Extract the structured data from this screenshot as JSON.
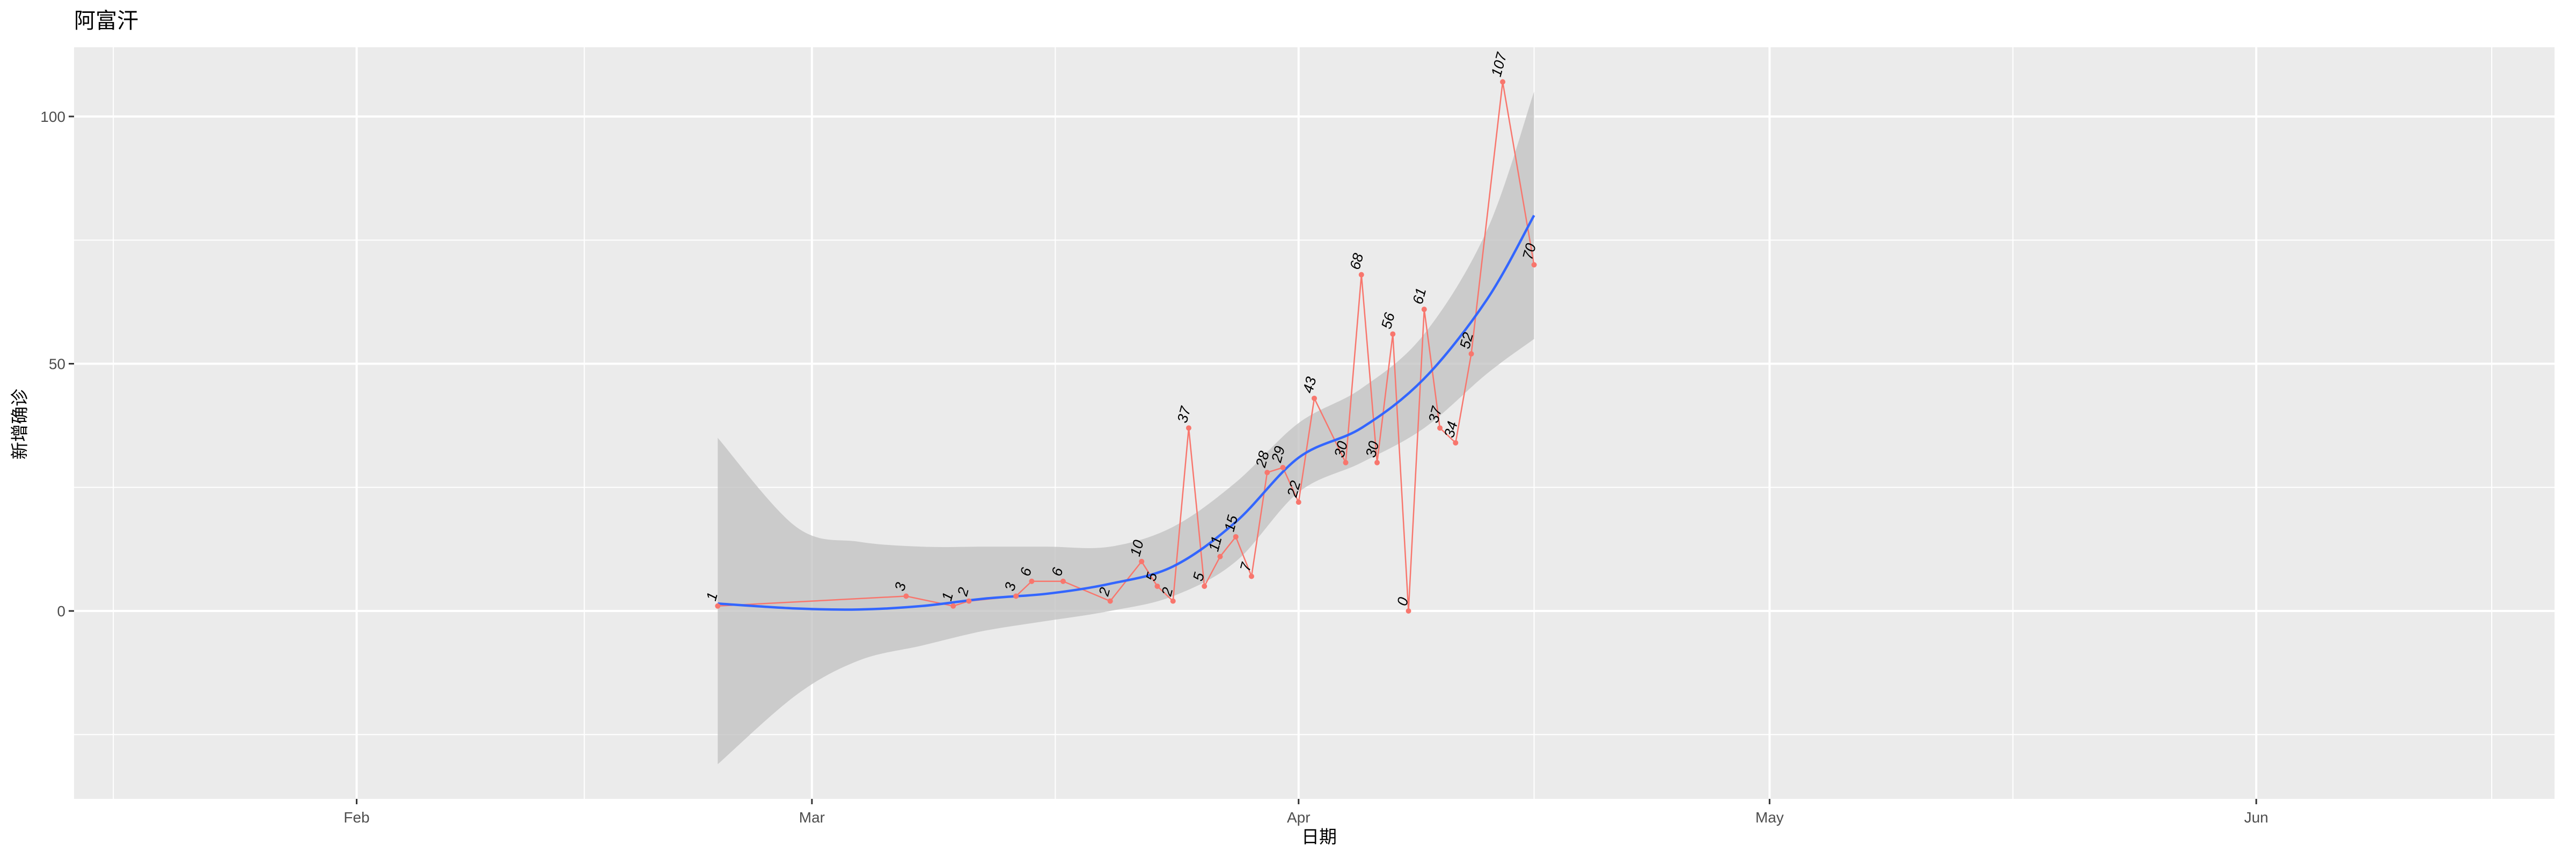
{
  "chart_data": {
    "type": "line",
    "title": "阿富汗",
    "xlabel": "日期",
    "ylabel": "新增确诊",
    "x_tick_labels": [
      "Feb",
      "Mar",
      "Apr",
      "May",
      "Jun"
    ],
    "y_tick_labels": [
      "0",
      "50",
      "100"
    ],
    "xlim": [
      "2020-01-14",
      "2020-06-20"
    ],
    "ylim": [
      -38,
      114
    ],
    "grid": true,
    "legend": "none",
    "colors": {
      "panel": "#ebebeb",
      "grid": "#ffffff",
      "series": "#f8766d",
      "smooth": "#3366ff",
      "band": "#c0c0c0"
    },
    "series": [
      {
        "points": [
          {
            "x": "2020-02-24",
            "y": 1
          },
          {
            "x": "2020-03-07",
            "y": 3
          },
          {
            "x": "2020-03-10",
            "y": 1
          },
          {
            "x": "2020-03-11",
            "y": 2
          },
          {
            "x": "2020-03-14",
            "y": 3
          },
          {
            "x": "2020-03-15",
            "y": 6
          },
          {
            "x": "2020-03-17",
            "y": 6
          },
          {
            "x": "2020-03-20",
            "y": 2
          },
          {
            "x": "2020-03-22",
            "y": 10
          },
          {
            "x": "2020-03-23",
            "y": 5
          },
          {
            "x": "2020-03-24",
            "y": 2
          },
          {
            "x": "2020-03-25",
            "y": 37
          },
          {
            "x": "2020-03-26",
            "y": 5
          },
          {
            "x": "2020-03-27",
            "y": 11
          },
          {
            "x": "2020-03-28",
            "y": 15
          },
          {
            "x": "2020-03-29",
            "y": 7
          },
          {
            "x": "2020-03-30",
            "y": 28
          },
          {
            "x": "2020-03-31",
            "y": 29
          },
          {
            "x": "2020-04-01",
            "y": 22
          },
          {
            "x": "2020-04-02",
            "y": 43
          },
          {
            "x": "2020-04-04",
            "y": 30
          },
          {
            "x": "2020-04-05",
            "y": 68
          },
          {
            "x": "2020-04-06",
            "y": 30
          },
          {
            "x": "2020-04-07",
            "y": 56
          },
          {
            "x": "2020-04-08",
            "y": 0
          },
          {
            "x": "2020-04-09",
            "y": 61
          },
          {
            "x": "2020-04-10",
            "y": 37
          },
          {
            "x": "2020-04-11",
            "y": 34
          },
          {
            "x": "2020-04-12",
            "y": 52
          },
          {
            "x": "2020-04-14",
            "y": 107
          },
          {
            "x": "2020-04-16",
            "y": 70
          }
        ]
      }
    ],
    "smooth": {
      "x": [
        "2020-02-24",
        "2020-02-29",
        "2020-03-04",
        "2020-03-08",
        "2020-03-12",
        "2020-03-16",
        "2020-03-20",
        "2020-03-24",
        "2020-03-28",
        "2020-04-01",
        "2020-04-05",
        "2020-04-09",
        "2020-04-13",
        "2020-04-16"
      ],
      "y": [
        1.5,
        0.5,
        0.3,
        1,
        2.5,
        3.5,
        5.5,
        9,
        18,
        31,
        37,
        47,
        63,
        80
      ],
      "lower": [
        -31,
        -17,
        -10,
        -7,
        -4,
        -2,
        0,
        3,
        10,
        24,
        30,
        37,
        48,
        55
      ],
      "upper": [
        35,
        17,
        14,
        13,
        13,
        13,
        13,
        17,
        26,
        38,
        45,
        56,
        77,
        105
      ]
    }
  }
}
